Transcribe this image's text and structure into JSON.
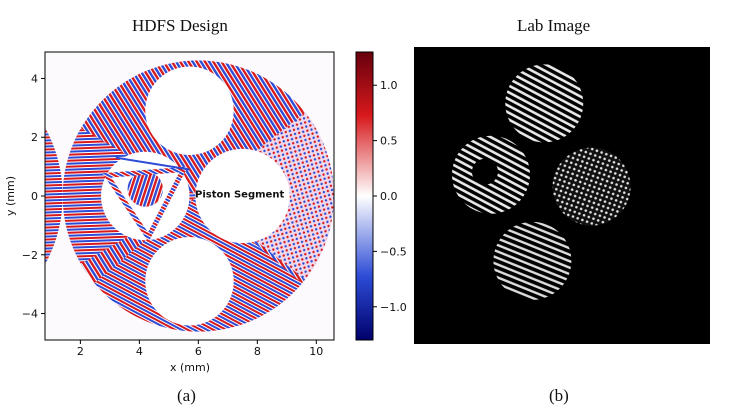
{
  "chart_data": [
    {
      "type": "heatmap",
      "title": "HDFS Design",
      "xlabel": "x (mm)",
      "ylabel": "y (mm)",
      "xlim": [
        0.8,
        10.6
      ],
      "ylim": [
        -4.9,
        4.9
      ],
      "x_ticks": [
        2,
        4,
        6,
        8,
        10
      ],
      "y_ticks": [
        -4,
        -2,
        0,
        2,
        4
      ],
      "annotation": "Piston Segment",
      "colorbar": {
        "ticks": [
          1.0,
          0.5,
          0.0,
          -0.5,
          -1.0
        ],
        "tick_labels": [
          "1.0",
          "0.5",
          "0.0",
          "−0.5",
          "−1.0"
        ],
        "range": [
          -1.3,
          1.3
        ],
        "colormap": "seismic"
      },
      "aperture": {
        "center": [
          6.0,
          0.0
        ],
        "radius": 4.6
      },
      "holes": [
        {
          "center": [
            5.7,
            2.9
          ],
          "radius": 1.5
        },
        {
          "center": [
            5.7,
            -2.9
          ],
          "radius": 1.5
        },
        {
          "center": [
            7.5,
            0.0
          ],
          "radius": 1.6
        },
        {
          "center": [
            4.2,
            0.0
          ],
          "radius": 1.5
        }
      ],
      "caption": "(a)"
    },
    {
      "type": "image",
      "title": "Lab Image",
      "caption": "(b)",
      "spots": [
        {
          "pattern": "stripes",
          "center": [
            0.44,
            0.19
          ]
        },
        {
          "pattern": "stripes-with-hole",
          "center": [
            0.26,
            0.43
          ]
        },
        {
          "pattern": "dots",
          "center": [
            0.6,
            0.47
          ]
        },
        {
          "pattern": "stripes",
          "center": [
            0.4,
            0.72
          ]
        }
      ]
    }
  ],
  "colors": {
    "red": "#d7191c",
    "blue": "#2c4bd6",
    "colorbar_top": "#67000d",
    "colorbar_bottom": "#00006a"
  }
}
